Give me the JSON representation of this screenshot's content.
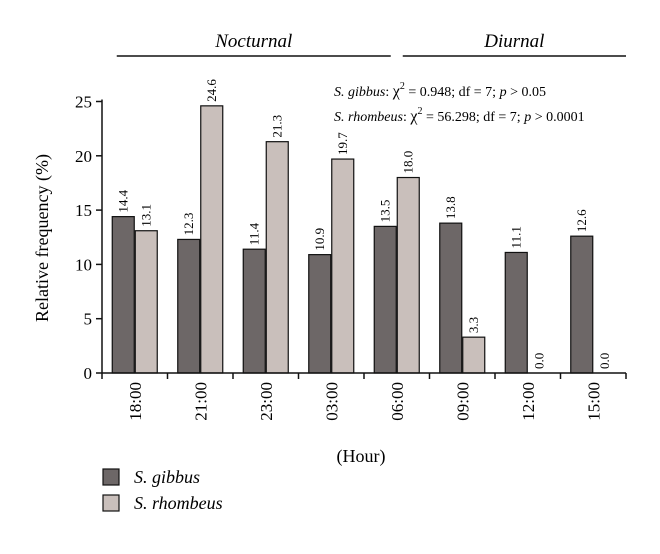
{
  "chart_data": {
    "type": "bar",
    "categories": [
      "18:00",
      "21:00",
      "23:00",
      "03:00",
      "06:00",
      "09:00",
      "12:00",
      "15:00"
    ],
    "series": [
      {
        "name": "S. gibbus",
        "color": "#6d6767",
        "values": [
          14.4,
          12.3,
          11.4,
          10.9,
          13.5,
          13.8,
          11.1,
          12.6
        ],
        "labels": [
          "14.4",
          "12.3",
          "11.4",
          "10.9",
          "13.5",
          "13.8",
          "11.1",
          "12.6"
        ]
      },
      {
        "name": "S. rhombeus",
        "color": "#c9bfbb",
        "values": [
          13.1,
          24.6,
          21.3,
          19.7,
          18.0,
          3.3,
          0.0,
          0.0
        ],
        "labels": [
          "13.1",
          "24.6",
          "21.3",
          "19.7",
          "18.0",
          "3.3",
          "0.0",
          "0.0"
        ]
      }
    ],
    "xlabel": "(Hour)",
    "ylabel": "Relative frequency (%)",
    "ylim": [
      0,
      25
    ],
    "yticks": [
      "0",
      "5",
      "10",
      "15",
      "20",
      "25"
    ],
    "grid": false,
    "legend_position": "bottom-left",
    "periods": [
      {
        "label": "Nocturnal",
        "from": "18:00",
        "to": "06:00"
      },
      {
        "label": "Diurnal",
        "from": "06:00",
        "to": "15:00"
      }
    ],
    "annotations": [
      {
        "species": "S. gibbus",
        "stat": "χ",
        "sup": "2",
        "value": " = 0.948; df = 7; ",
        "p": "p",
        "tail": " > 0.05"
      },
      {
        "species": "S. rhombeus",
        "stat": "χ",
        "sup": "2",
        "value": " = 56.298; df = 7; ",
        "p": "p",
        "tail": " > 0.0001"
      }
    ]
  }
}
